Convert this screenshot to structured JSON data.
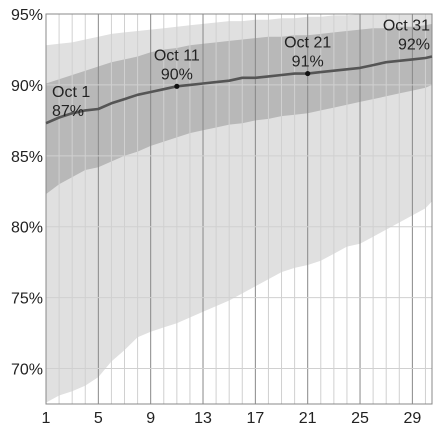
{
  "chart_data": {
    "type": "area",
    "title": "",
    "xlabel": "",
    "ylabel": "",
    "x": [
      1,
      2,
      3,
      4,
      5,
      6,
      7,
      8,
      9,
      10,
      11,
      12,
      13,
      14,
      15,
      16,
      17,
      18,
      19,
      20,
      21,
      22,
      23,
      24,
      25,
      26,
      27,
      28,
      29,
      30,
      31
    ],
    "xlim": [
      1,
      31
    ],
    "ylim": [
      67.5,
      95
    ],
    "x_ticks": [
      "1",
      "5",
      "9",
      "13",
      "17",
      "21",
      "25",
      "29"
    ],
    "y_ticks": [
      "70%",
      "75%",
      "80%",
      "85%",
      "90%",
      "95%"
    ],
    "x_tick_values": [
      1,
      5,
      9,
      13,
      17,
      21,
      25,
      29
    ],
    "y_tick_values": [
      70,
      75,
      80,
      85,
      90,
      95
    ],
    "grid": true,
    "series": [
      {
        "role": "median",
        "values": [
          87.3,
          87.7,
          88.0,
          88.2,
          88.3,
          88.7,
          89.0,
          89.3,
          89.5,
          89.7,
          89.9,
          90.0,
          90.1,
          90.2,
          90.3,
          90.5,
          90.5,
          90.6,
          90.7,
          90.8,
          90.8,
          90.9,
          91.0,
          91.1,
          91.2,
          91.4,
          91.6,
          91.7,
          91.8,
          91.9,
          92.0
        ]
      },
      {
        "role": "inner-band-lower",
        "values": [
          82.3,
          83.0,
          83.5,
          84.0,
          84.2,
          84.6,
          85.0,
          85.3,
          85.7,
          86.0,
          86.3,
          86.6,
          86.8,
          87.0,
          87.2,
          87.3,
          87.5,
          87.6,
          87.8,
          87.9,
          88.0,
          88.2,
          88.4,
          88.6,
          88.8,
          89.0,
          89.2,
          89.4,
          89.6,
          89.8,
          90.0
        ]
      },
      {
        "role": "inner-band-upper",
        "values": [
          90.1,
          90.4,
          90.7,
          91.0,
          91.3,
          91.6,
          91.8,
          92.0,
          92.3,
          92.5,
          92.6,
          92.8,
          92.9,
          93.0,
          93.1,
          93.2,
          93.3,
          93.4,
          93.4,
          93.5,
          93.5,
          93.6,
          93.7,
          93.8,
          93.9,
          94.0,
          94.0,
          94.1,
          94.1,
          94.2,
          94.3
        ]
      },
      {
        "role": "outer-band-lower",
        "values": [
          67.6,
          68.1,
          68.4,
          68.8,
          69.4,
          70.5,
          71.3,
          72.2,
          72.6,
          72.9,
          73.2,
          73.6,
          74.0,
          74.4,
          74.8,
          75.3,
          75.8,
          76.3,
          76.8,
          77.1,
          77.3,
          77.6,
          78.1,
          78.6,
          78.8,
          79.3,
          79.8,
          80.3,
          80.8,
          81.3,
          81.8
        ]
      },
      {
        "role": "outer-band-upper",
        "values": [
          92.8,
          92.9,
          93.0,
          93.2,
          93.4,
          93.6,
          93.7,
          93.8,
          93.9,
          94.0,
          94.1,
          94.2,
          94.3,
          94.4,
          94.5,
          94.5,
          94.6,
          94.6,
          94.7,
          94.7,
          94.8,
          94.8,
          94.9,
          94.9,
          95.0,
          95.0,
          95.0,
          95.0,
          95.0,
          95.0,
          95.0
        ]
      }
    ],
    "annotations": [
      {
        "x": 1,
        "y": 87,
        "line1": "Oct 1",
        "line2": "87%",
        "anchor": "start"
      },
      {
        "x": 11,
        "y": 90,
        "line1": "Oct 11",
        "line2": "90%",
        "anchor": "middle"
      },
      {
        "x": 21,
        "y": 91,
        "line1": "Oct 21",
        "line2": "91%",
        "anchor": "middle"
      },
      {
        "x": 31,
        "y": 92,
        "line1": "Oct 31",
        "line2": "92%",
        "anchor": "end"
      }
    ],
    "colors": {
      "outer_band": "#e0e0e0",
      "inner_band": "#b8b8b8",
      "median_line": "#555555",
      "grid_major": "#888888",
      "grid_minor": "#d0d0d0",
      "axis_text": "#222222"
    }
  }
}
